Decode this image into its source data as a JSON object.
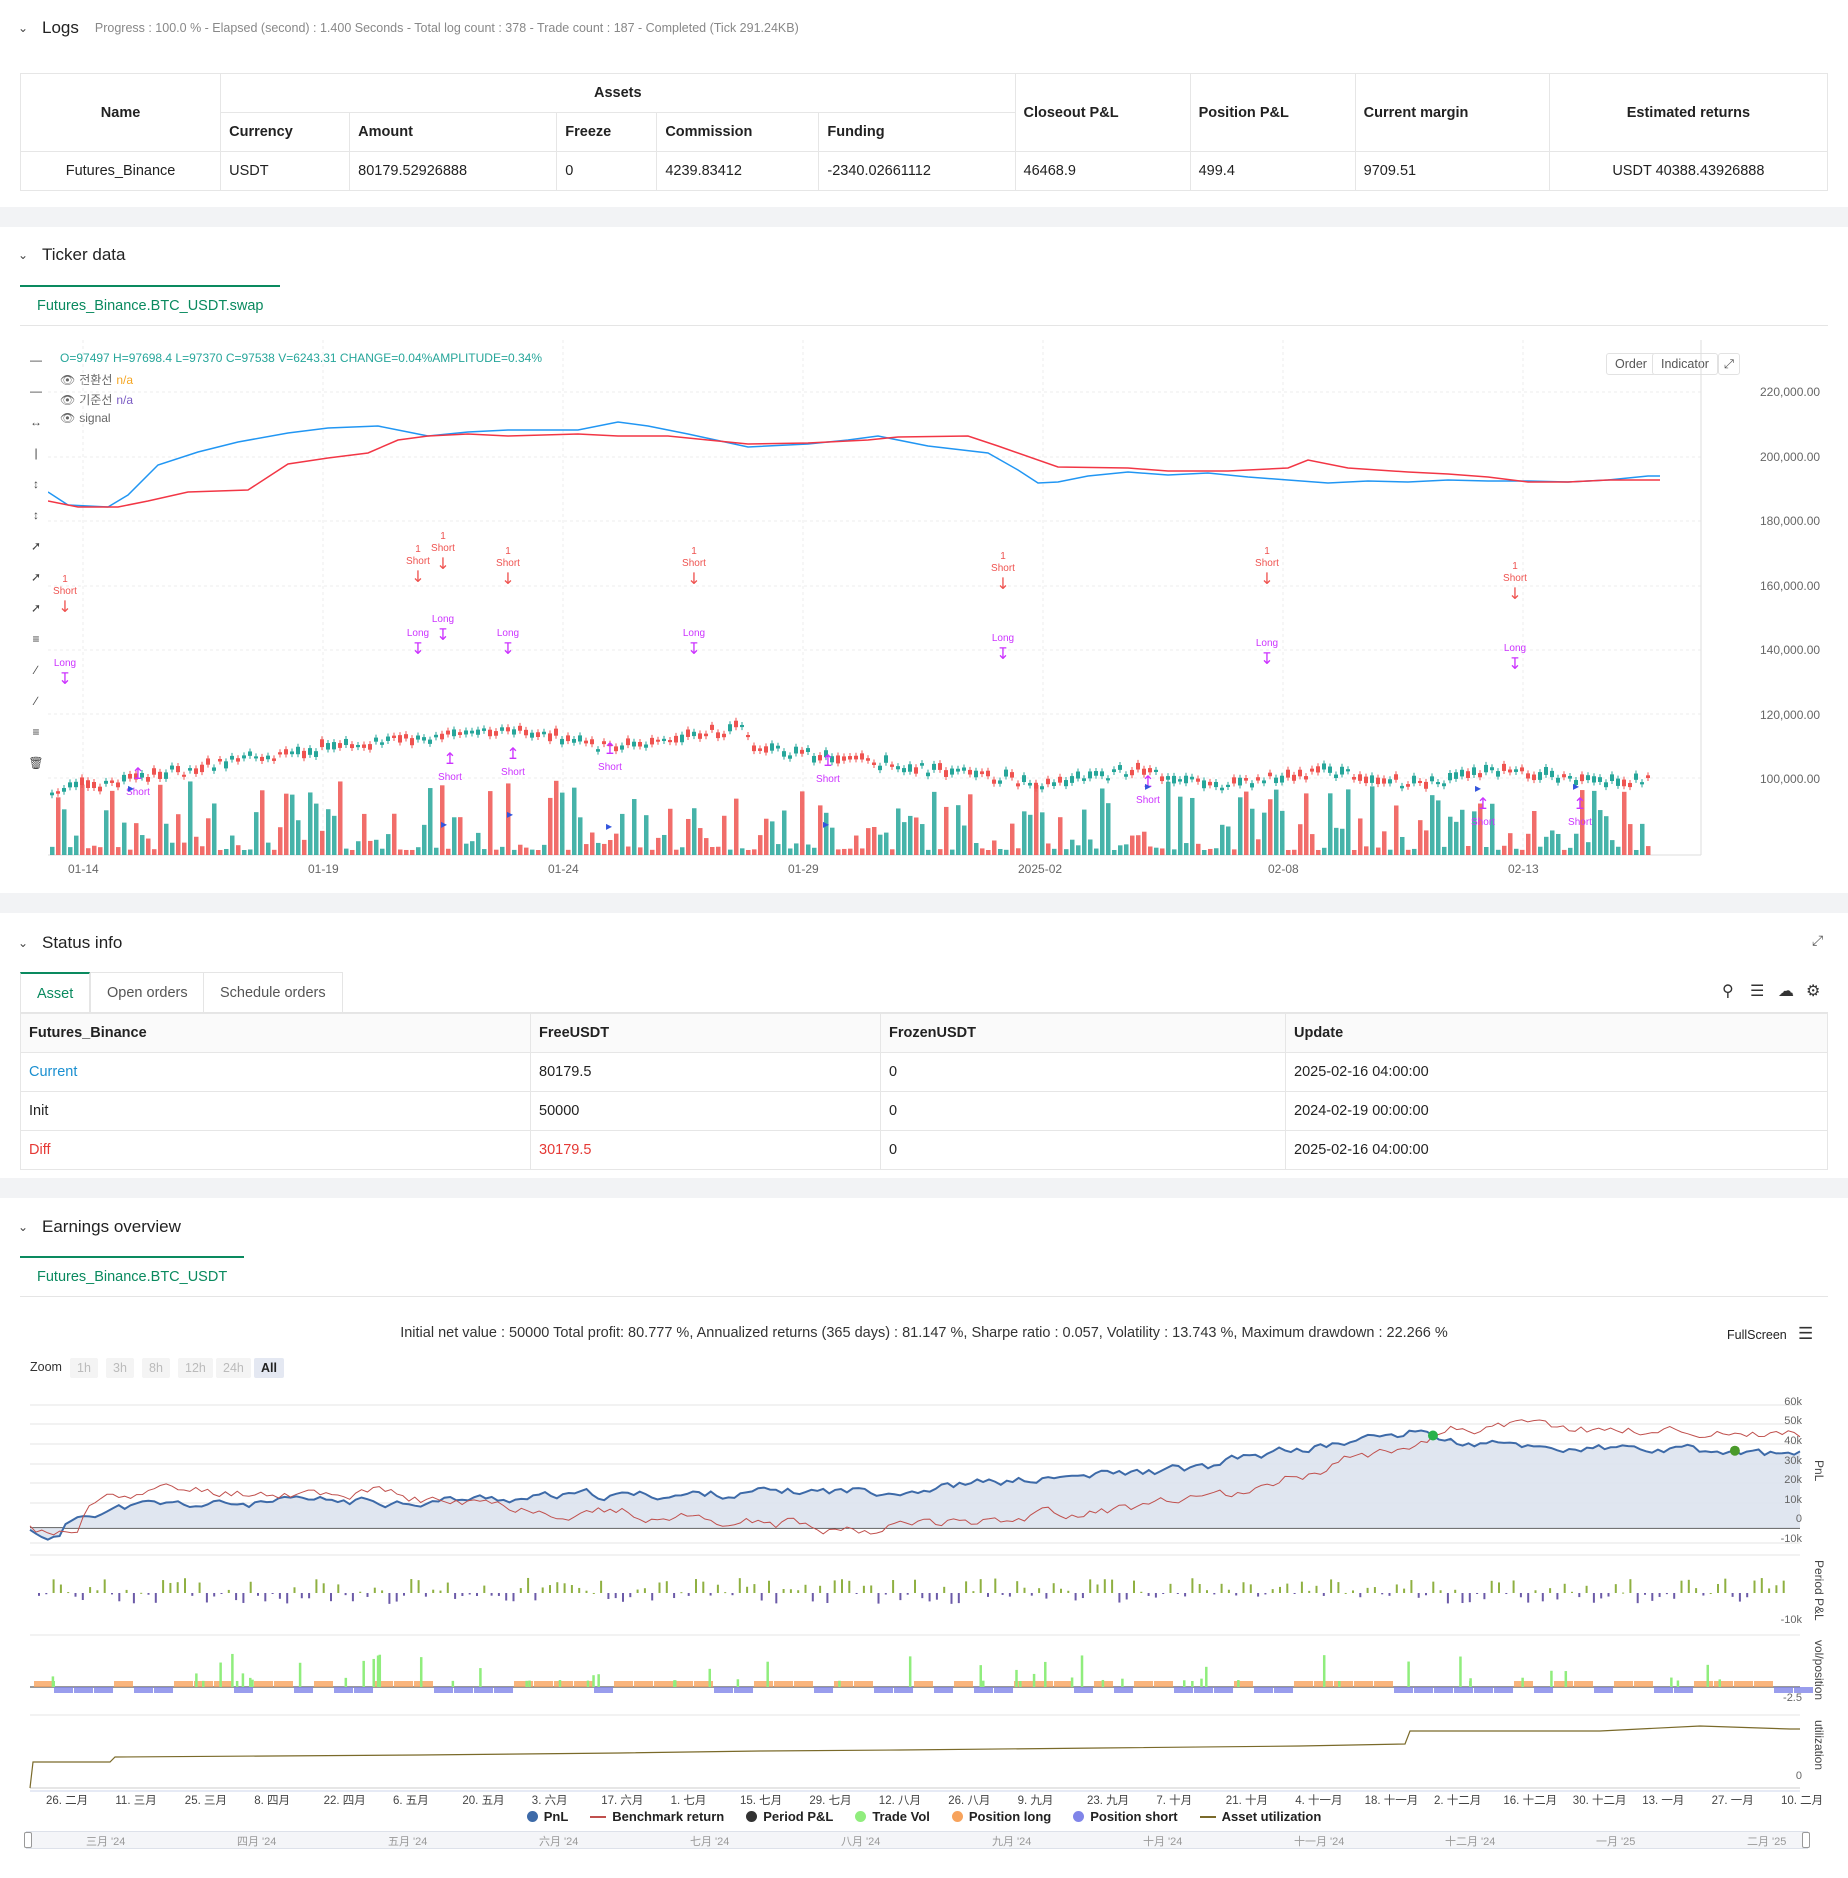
{
  "logs": {
    "title": "Logs",
    "summary": "Progress : 100.0 % - Elapsed (second) : 1.400  Seconds - Total log count : 378 - Trade count : 187 - Completed (Tick 291.24KB)"
  },
  "assets_table": {
    "h_name": "Name",
    "h_assets": "Assets",
    "h_currency": "Currency",
    "h_amount": "Amount",
    "h_freeze": "Freeze",
    "h_commission": "Commission",
    "h_funding": "Funding",
    "h_closeout": "Closeout P&L",
    "h_position": "Position P&L",
    "h_margin": "Current margin",
    "h_estimated": "Estimated returns",
    "row": {
      "name": "Futures_Binance",
      "currency": "USDT",
      "amount": "80179.52926888",
      "freeze": "0",
      "commission": "4239.83412",
      "funding": "-2340.02661112",
      "closeout": "46468.9",
      "position": "499.4",
      "margin": "9709.51",
      "estimated": "USDT 40388.43926888"
    }
  },
  "ticker": {
    "title": "Ticker data",
    "tab": "Futures_Binance.BTC_USDT.swap",
    "ohlc_prefix": "O=97497 H=97698.4 L=97370 C=97538 V=6243.31 CHANGE=",
    "ohlc_change": "0.04%",
    "ohlc_amp_label": " AMPLITUDE=",
    "ohlc_amp": "0.34%",
    "legend": [
      {
        "name": "전환선",
        "value": "n/a",
        "color": "#f5a623"
      },
      {
        "name": "기준선",
        "value": "n/a",
        "color": "#7b5cc4"
      },
      {
        "name": "signal",
        "value": "",
        "color": "#666666"
      }
    ],
    "btn_order": "Order",
    "btn_indicator": "Indicator",
    "y_ticks": [
      "220,000.00",
      "200,000.00",
      "180,000.00",
      "160,000.00",
      "140,000.00",
      "120,000.00",
      "100,000.00"
    ],
    "x_ticks": [
      "01-14",
      "01-19",
      "01-24",
      "01-29",
      "2025-02",
      "02-08",
      "02-13"
    ],
    "colors": {
      "up": "#26a69a",
      "down": "#ef5350",
      "conv_line": "#2196f3",
      "base_line": "#f23645",
      "signal": "#cc33ff"
    },
    "marker_short": "Short",
    "marker_long": "Long",
    "marker_one": "1"
  },
  "status": {
    "title": "Status info",
    "tabs": [
      "Asset",
      "Open orders",
      "Schedule orders"
    ],
    "headers": [
      "Futures_Binance",
      "FreeUSDT",
      "FrozenUSDT",
      "Update"
    ],
    "rows": [
      {
        "label": "Current",
        "free": "80179.5",
        "frozen": "0",
        "update": "2025-02-16 04:00:00"
      },
      {
        "label": "Init",
        "free": "50000",
        "frozen": "0",
        "update": "2024-02-19 00:00:00"
      },
      {
        "label": "Diff",
        "free": "30179.5",
        "frozen": "0",
        "update": "2025-02-16 04:00:00"
      }
    ]
  },
  "earnings": {
    "title": "Earnings overview",
    "tab": "Futures_Binance.BTC_USDT",
    "summary": "Initial net value : 50000 Total profit: 80.777 %, Annualized returns (365 days) : 81.147 %, Sharpe ratio : 0.057, Volatility : 13.743 %, Maximum drawdown : 22.266 %",
    "fullscreen": "FullScreen",
    "zoom_label": "Zoom",
    "zoom_opts": [
      "1h",
      "3h",
      "8h",
      "12h",
      "24h",
      "All"
    ],
    "pnl_ticks": [
      "60k",
      "50k",
      "40k",
      "30k",
      "20k",
      "10k",
      "0",
      "-10k"
    ],
    "period_ticks": [
      "-10k"
    ],
    "vol_ticks": [
      "-2.5"
    ],
    "util_ticks": [
      "0"
    ],
    "axis_names": [
      "PnL",
      "Period P&L",
      "vol/position",
      "utilization"
    ],
    "x_ticks": [
      "26. 二月",
      "11. 三月",
      "25. 三月",
      "8. 四月",
      "22. 四月",
      "6. 五月",
      "20. 五月",
      "3. 六月",
      "17. 六月",
      "1. 七月",
      "15. 七月",
      "29. 七月",
      "12. 八月",
      "26. 八月",
      "9. 九月",
      "23. 九月",
      "7. 十月",
      "21. 十月",
      "4. 十一月",
      "18. 十一月",
      "2. 十二月",
      "16. 十二月",
      "30. 十二月",
      "13. 一月",
      "27. 一月",
      "10. 二月"
    ],
    "nav_ticks": [
      "三月 '24",
      "四月 '24",
      "五月 '24",
      "六月 '24",
      "七月 '24",
      "八月 '24",
      "九月 '24",
      "十月 '24",
      "十一月 '24",
      "十二月 '24",
      "一月 '25",
      "二月 '25"
    ],
    "legend": [
      {
        "label": "PnL",
        "color": "#3d6aa8",
        "kind": "dot"
      },
      {
        "label": "Benchmark return",
        "color": "#c0504d",
        "kind": "line"
      },
      {
        "label": "Period P&L",
        "color": "#333333",
        "kind": "dot"
      },
      {
        "label": "Trade Vol",
        "color": "#90ed7d",
        "kind": "dot"
      },
      {
        "label": "Position long",
        "color": "#f7a35c",
        "kind": "dot"
      },
      {
        "label": "Position short",
        "color": "#8085e9",
        "kind": "dot"
      },
      {
        "label": "Asset utilization",
        "color": "#7a6a2a",
        "kind": "line"
      }
    ]
  }
}
